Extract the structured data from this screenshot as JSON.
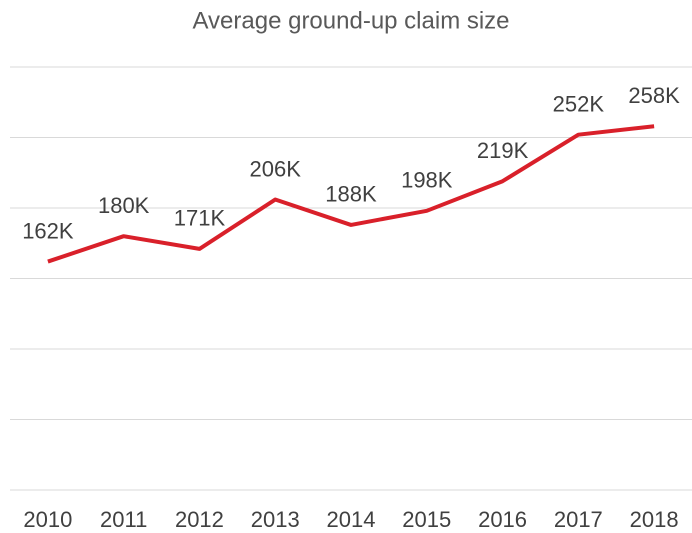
{
  "chart_data": {
    "type": "line",
    "title": "Average ground-up claim size",
    "categories": [
      "2010",
      "2011",
      "2012",
      "2013",
      "2014",
      "2015",
      "2016",
      "2017",
      "2018"
    ],
    "series": [
      {
        "color": "#d9202a",
        "values": [
          162000,
          180000,
          171000,
          206000,
          188000,
          198000,
          219000,
          252000,
          258000
        ],
        "value_labels": [
          "162K",
          "180K",
          "171K",
          "206K",
          "188K",
          "198K",
          "219K",
          "252K",
          "258K"
        ]
      }
    ],
    "ylim": [
      0,
      300000
    ],
    "yticks": [
      0,
      50000,
      100000,
      150000,
      200000,
      250000,
      300000
    ],
    "grid": true
  }
}
